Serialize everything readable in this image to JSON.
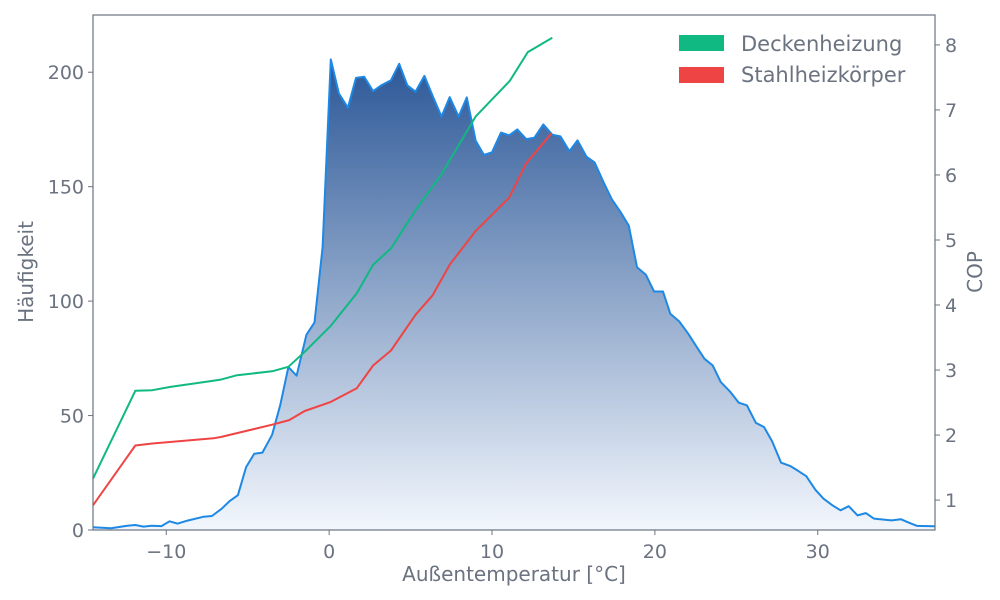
{
  "chart_data": {
    "type": "area",
    "xlabel": "Außentemperatur [°C]",
    "ylabel": "Häufigkeit",
    "y2label": "COP",
    "xlim": [
      -14.5,
      37.2
    ],
    "ylim": [
      0,
      225
    ],
    "y2lim": [
      0.54,
      8.46
    ],
    "xticks": [
      -10,
      0,
      10,
      20,
      30
    ],
    "yticks": [
      0,
      50,
      100,
      150,
      200
    ],
    "y2ticks": [
      1,
      2,
      3,
      4,
      5,
      6,
      7,
      8
    ],
    "grid": false,
    "legend_position": "top-right",
    "histogram": {
      "color": "#1e88e5",
      "gradient_top": "#2b5797",
      "gradient_bottom": "#f3f7fd",
      "x": [
        -14.5,
        -13.4,
        -12.4,
        -11.9,
        -11.4,
        -10.9,
        -10.3,
        -9.8,
        -9.3,
        -8.7,
        -7.7,
        -7.2,
        -6.6,
        -6.1,
        -5.6,
        -5.1,
        -4.6,
        -4.1,
        -3.5,
        -3.0,
        -2.5,
        -2.0,
        -1.4,
        -0.9,
        -0.4,
        0.1,
        0.6,
        1.15,
        1.65,
        2.15,
        2.7,
        3.2,
        3.8,
        4.3,
        4.8,
        5.3,
        5.85,
        6.35,
        6.9,
        7.4,
        7.95,
        8.45,
        9.0,
        9.5,
        10.0,
        10.55,
        11.05,
        11.55,
        12.1,
        12.6,
        13.15,
        13.7,
        14.2,
        14.75,
        15.25,
        15.8,
        16.3,
        16.85,
        17.35,
        17.9,
        18.4,
        18.9,
        19.45,
        19.95,
        20.5,
        20.95,
        21.5,
        22.05,
        22.55,
        23.05,
        23.55,
        24.05,
        24.6,
        25.15,
        25.65,
        26.2,
        26.7,
        27.2,
        27.75,
        28.3,
        28.8,
        29.3,
        29.85,
        30.35,
        30.9,
        31.4,
        31.9,
        32.45,
        32.95,
        33.45,
        34.55,
        35.1,
        35.6,
        36.1,
        37.2
      ],
      "values": [
        1.2,
        0.8,
        1.9,
        2.2,
        1.5,
        1.9,
        1.7,
        3.8,
        2.8,
        4.1,
        5.8,
        6.1,
        9.3,
        12.7,
        15.2,
        27.5,
        33.3,
        33.8,
        41.6,
        54.7,
        71.2,
        67.4,
        85.3,
        90.7,
        123.5,
        205.6,
        190.7,
        184.5,
        197.5,
        198,
        191.7,
        194.3,
        196.5,
        203.7,
        194.3,
        191.5,
        198.4,
        189.7,
        180.6,
        189.1,
        180.6,
        189,
        170.1,
        163.9,
        165,
        173.6,
        172.4,
        175,
        170.8,
        171.4,
        177.2,
        172.7,
        172,
        165.5,
        170.2,
        163.1,
        160.6,
        151.9,
        144.6,
        138.8,
        133,
        114.8,
        111.5,
        104.2,
        104.2,
        94.5,
        91.1,
        85.7,
        80.2,
        74.8,
        71.9,
        64.6,
        60.6,
        55.6,
        54.5,
        46.8,
        45,
        38.8,
        29.4,
        28,
        25.8,
        23.5,
        17.6,
        13.7,
        10.8,
        8.6,
        10.4,
        6.4,
        7.4,
        5,
        4.2,
        4.7,
        3.2,
        1.8,
        1.6
      ]
    },
    "series": [
      {
        "name": "Deckenheizung",
        "color": "#10b981",
        "axis": "right",
        "x": [
          -14.5,
          -11.9,
          -10.85,
          -9.75,
          -6.7,
          -5.65,
          -3.5,
          -2.5,
          -1.5,
          0.1,
          1.7,
          2.7,
          3.8,
          5.3,
          6.9,
          9.0,
          11.1,
          12.2,
          13.7
        ],
        "values": [
          1.33,
          2.68,
          2.69,
          2.74,
          2.85,
          2.92,
          2.98,
          3.05,
          3.28,
          3.68,
          4.18,
          4.62,
          4.87,
          5.46,
          6.01,
          6.9,
          7.45,
          7.89,
          8.11
        ]
      },
      {
        "name": "Stahlheizkörper",
        "color": "#ef4444",
        "axis": "right",
        "x": [
          -14.5,
          -11.9,
          -10.85,
          -7.1,
          -6.65,
          -3.5,
          -2.45,
          -1.5,
          0.1,
          1.7,
          2.7,
          3.8,
          5.3,
          6.35,
          7.4,
          9.0,
          11.05,
          12.1,
          13.65
        ],
        "values": [
          0.92,
          1.84,
          1.87,
          1.95,
          1.97,
          2.16,
          2.23,
          2.37,
          2.51,
          2.72,
          3.07,
          3.3,
          3.85,
          4.15,
          4.62,
          5.14,
          5.65,
          6.18,
          6.64
        ]
      }
    ]
  }
}
